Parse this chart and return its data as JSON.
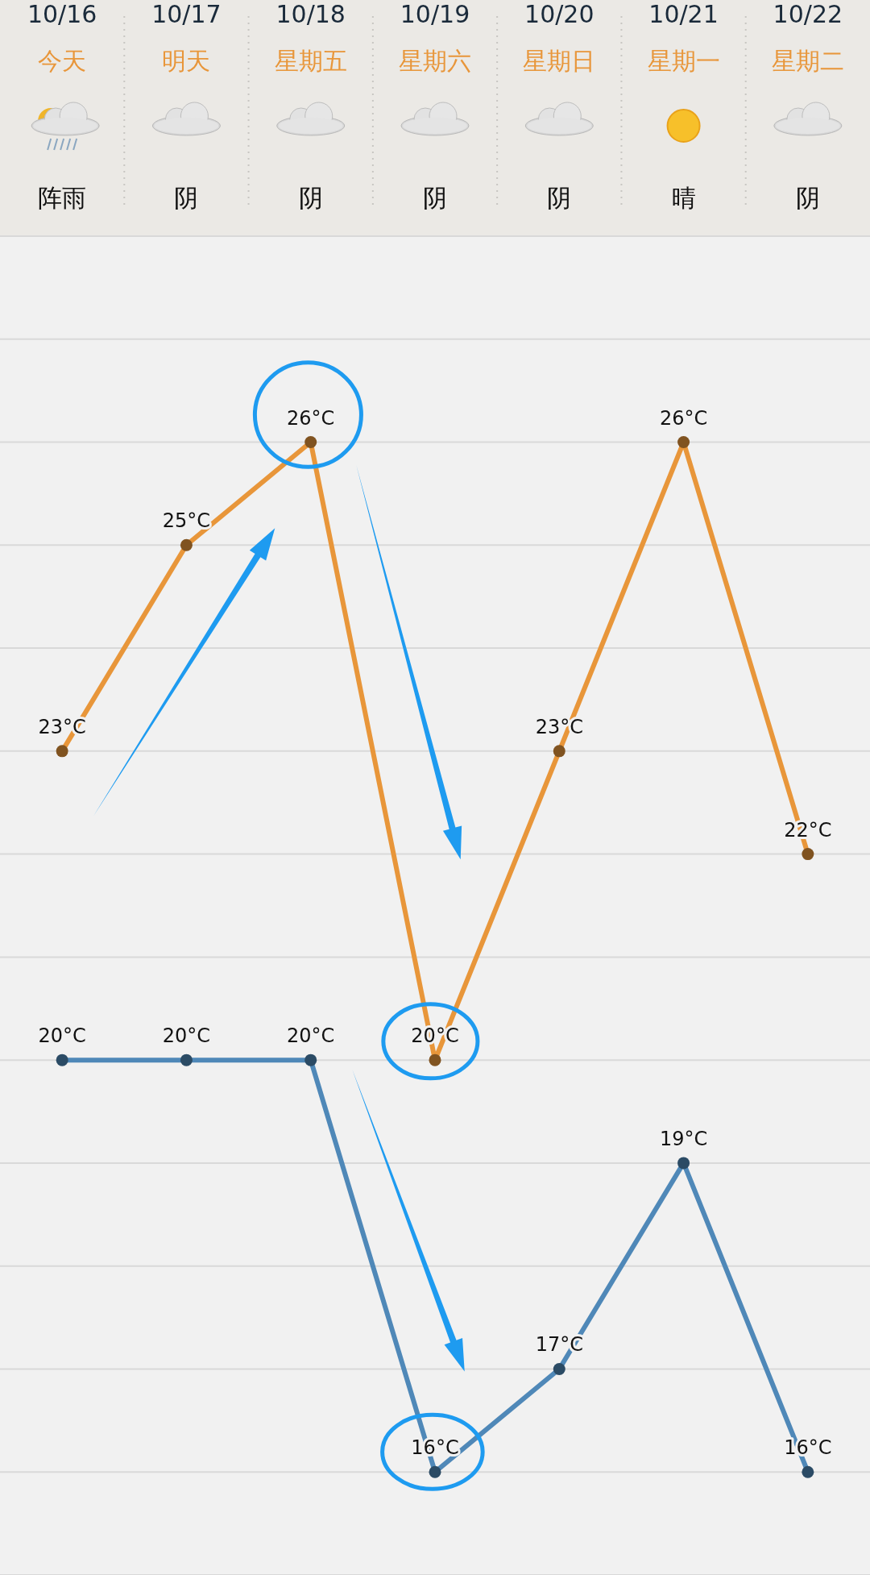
{
  "chart_data": {
    "type": "line",
    "categories": [
      "10/16",
      "10/17",
      "10/18",
      "10/19",
      "10/20",
      "10/21",
      "10/22"
    ],
    "annotations": [
      "今天",
      "明天",
      "星期五",
      "星期六",
      "星期日",
      "星期一",
      "星期二",
      "阵雨",
      "阴",
      "阴",
      "阴",
      "阴",
      "晴",
      "阴"
    ],
    "series": [
      {
        "color": "#e8963a",
        "values": [
          23,
          25,
          26,
          20,
          23,
          26,
          22
        ],
        "value_labels": [
          "23°C",
          "25°C",
          "26°C",
          "20°C",
          "23°C",
          "26°C",
          "22°C"
        ]
      },
      {
        "color": "#4f88b8",
        "values": [
          20,
          20,
          20,
          16,
          17,
          19,
          16
        ],
        "value_labels": [
          "20°C",
          "20°C",
          "20°C",
          "16°C",
          "17°C",
          "19°C",
          "16°C"
        ]
      }
    ],
    "ylim": [
      15,
      28
    ],
    "yticks": [
      {
        "value": 15,
        "label": null
      },
      {
        "value": 16,
        "label": null
      },
      {
        "value": 17,
        "label": null
      },
      {
        "value": 18,
        "label": null
      },
      {
        "value": 19,
        "label": null
      },
      {
        "value": 20,
        "label": null
      },
      {
        "value": 21,
        "label": null
      },
      {
        "value": 22,
        "label": null
      },
      {
        "value": 23,
        "label": null
      },
      {
        "value": 24,
        "label": null
      },
      {
        "value": 25,
        "label": null
      },
      {
        "value": 26,
        "label": null
      },
      {
        "value": 27,
        "label": null
      },
      {
        "value": 28,
        "label": null
      }
    ],
    "grid": "y",
    "tick_labels": "x",
    "marker": "circle",
    "line_style": "solid"
  }
}
